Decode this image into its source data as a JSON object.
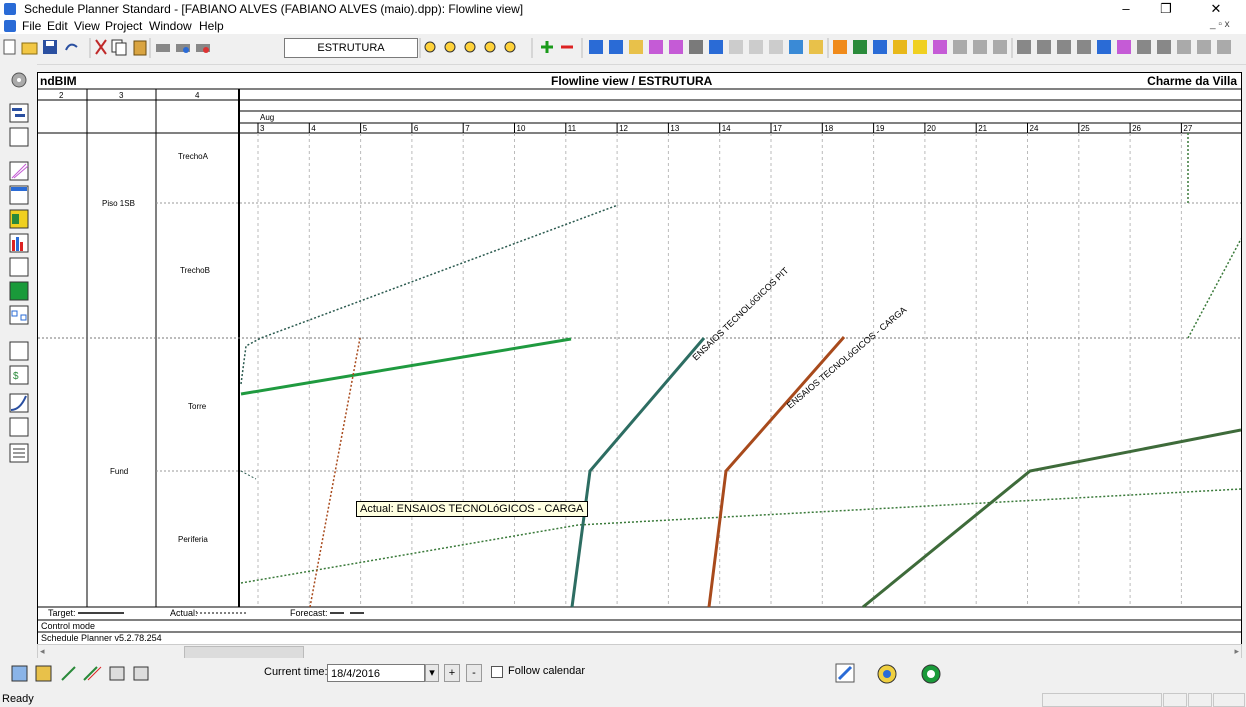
{
  "window": {
    "title": "Schedule Planner Standard - [FABIANO ALVES (FABIANO ALVES (maio).dpp): Flowline view]",
    "minimize": "–",
    "restore": "❐",
    "close": "✕"
  },
  "menu": {
    "items": [
      "File",
      "Edit",
      "View",
      "Project",
      "Window",
      "Help"
    ],
    "mdi_controls": "_ ▫ x"
  },
  "toolbar": {
    "view_selector": "ESTRUTURA"
  },
  "chart": {
    "header_left": "ndBIM",
    "header_center": "Flowline view / ESTRUTURA",
    "header_right": "Charme da Villa",
    "column_numbers": [
      "2",
      "3",
      "4"
    ],
    "month_label": "Aug",
    "days": [
      "3",
      "4",
      "5",
      "6",
      "7",
      "10",
      "11",
      "12",
      "13",
      "14",
      "17",
      "18",
      "19",
      "20",
      "21",
      "24",
      "25",
      "26",
      "27"
    ],
    "locations": [
      "TrechoA",
      "Piso 1SB",
      "TrechoB",
      "Torre",
      "Fund",
      "Periferia"
    ],
    "task_labels": [
      "ENSAIOS TECNOLóGICOS PIT",
      "ENSAIOS TECNOLóGICOS - CARGA"
    ],
    "tooltip": "Actual: ENSAIOS TECNOLóGICOS - CARGA",
    "legend_target": "Target:",
    "legend_actual": "Actual:",
    "legend_forecast": "Forecast:",
    "control_mode": "Control mode",
    "version": "Schedule Planner v5.2.78.254",
    "colors": {
      "green": "#1f9a3f",
      "teal": "#2d6d62",
      "brown_orange": "#a84a1c",
      "dark_green": "#3e6b3a",
      "navy_dotted": "#2b5a4f"
    }
  },
  "bottombar": {
    "current_time_label": "Current time:",
    "current_time_value": "18/4/2016",
    "plus_label": "+",
    "minus_label": "-",
    "follow_calendar_label": "Follow calendar"
  },
  "status": {
    "text": "Ready"
  }
}
